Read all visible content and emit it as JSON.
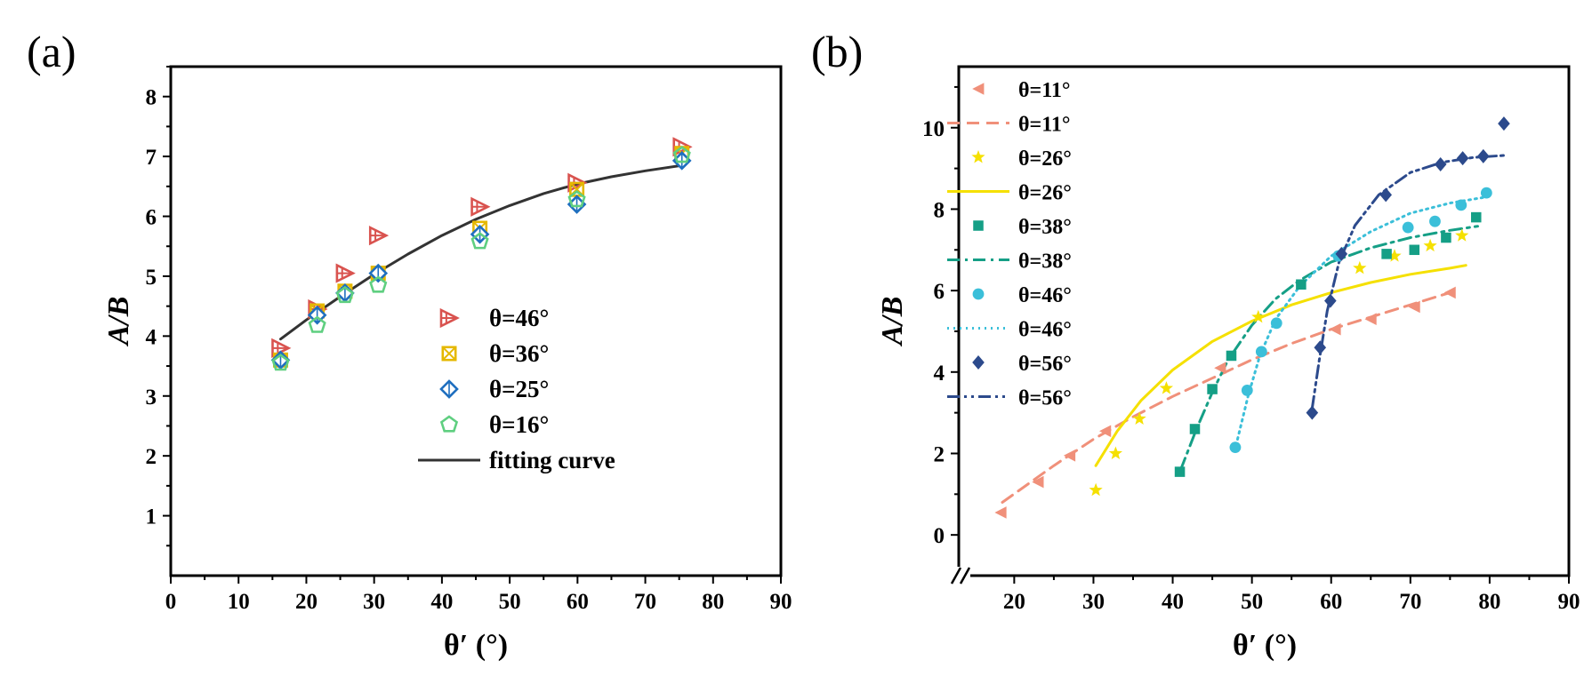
{
  "chart_data": [
    {
      "panel_label": "(a)",
      "type": "scatter",
      "xlabel": "θ′ (°)",
      "ylabel": "A/B",
      "xlim": [
        0,
        90
      ],
      "ylim": [
        0,
        8.5
      ],
      "xticks": [
        0,
        10,
        20,
        30,
        40,
        50,
        60,
        70,
        80,
        90
      ],
      "yticks": [
        1,
        2,
        3,
        4,
        5,
        6,
        7,
        8
      ],
      "grid": false,
      "legend_position": "bottom-right",
      "series": [
        {
          "name": "θ=46°",
          "marker": "triangle-right-plus",
          "color": "#d9534f",
          "x": [
            16.2,
            21.6,
            25.7,
            30.6,
            45.6,
            59.9,
            75.4
          ],
          "y": [
            3.8,
            4.45,
            5.05,
            5.68,
            6.16,
            6.56,
            7.16
          ]
        },
        {
          "name": "θ=36°",
          "marker": "square-x",
          "color": "#e5b800",
          "x": [
            16.2,
            21.6,
            25.7,
            30.6,
            45.6,
            59.9,
            75.4
          ],
          "y": [
            3.6,
            4.42,
            4.75,
            5.05,
            5.8,
            6.45,
            7.05
          ]
        },
        {
          "name": "θ=25°",
          "marker": "diamond-plus",
          "color": "#1f6fbf",
          "x": [
            16.2,
            21.6,
            25.7,
            30.6,
            45.6,
            59.9,
            75.4
          ],
          "y": [
            3.6,
            4.35,
            4.72,
            5.05,
            5.7,
            6.2,
            6.93
          ]
        },
        {
          "name": "θ=16°",
          "marker": "pentagon",
          "color": "#5fcf80",
          "x": [
            16.2,
            21.6,
            25.7,
            30.6,
            45.6,
            59.9,
            75.4
          ],
          "y": [
            3.55,
            4.18,
            4.68,
            4.85,
            5.58,
            6.28,
            7.02
          ]
        },
        {
          "name": "fitting curve",
          "type": "line",
          "style": "solid",
          "color": "#333333",
          "x": [
            16.2,
            20,
            25,
            30,
            35,
            40,
            45,
            50,
            55,
            60,
            65,
            70,
            75.4
          ],
          "y": [
            3.95,
            4.27,
            4.66,
            5.03,
            5.37,
            5.68,
            5.95,
            6.18,
            6.38,
            6.54,
            6.66,
            6.76,
            6.85
          ]
        }
      ]
    },
    {
      "panel_label": "(b)",
      "type": "scatter",
      "xlabel": "θ′ (°)",
      "ylabel": "A/B",
      "xlim": [
        13,
        90
      ],
      "ylim": [
        -1,
        11.5
      ],
      "xticks": [
        20,
        30,
        40,
        50,
        60,
        70,
        80,
        90
      ],
      "yticks": [
        0,
        2,
        4,
        6,
        8,
        10
      ],
      "axis_break": "x-start",
      "grid": false,
      "legend_position": "top-left",
      "series": [
        {
          "name": "θ=11°",
          "marker": "triangle-left",
          "color": "#f0907a",
          "x": [
            18.3,
            23,
            27,
            31.5,
            46,
            60.5,
            65,
            70.5,
            75
          ],
          "y": [
            0.55,
            1.3,
            1.95,
            2.55,
            4.1,
            5.05,
            5.3,
            5.6,
            5.95
          ]
        },
        {
          "name": "θ=11°",
          "type": "line",
          "style": "dashed",
          "color": "#f0907a",
          "x": [
            18.5,
            25,
            30,
            35,
            40,
            45,
            50,
            55,
            60,
            65,
            70,
            75
          ],
          "y": [
            0.8,
            1.7,
            2.35,
            2.9,
            3.4,
            3.85,
            4.3,
            4.7,
            5.05,
            5.35,
            5.65,
            5.95
          ]
        },
        {
          "name": "θ=26°",
          "marker": "star",
          "color": "#f5e000",
          "x": [
            30.3,
            32.8,
            35.8,
            39.2,
            50.8,
            63.6,
            68,
            72.5,
            76.5
          ],
          "y": [
            1.1,
            2.0,
            2.85,
            3.6,
            5.35,
            6.55,
            6.85,
            7.1,
            7.35
          ]
        },
        {
          "name": "θ=26°",
          "type": "line",
          "style": "solid",
          "color": "#f5e000",
          "x": [
            30.3,
            33,
            36,
            40,
            45,
            50,
            55,
            60,
            65,
            70,
            75,
            77
          ],
          "y": [
            1.7,
            2.55,
            3.3,
            4.05,
            4.75,
            5.25,
            5.65,
            5.95,
            6.2,
            6.4,
            6.55,
            6.62
          ]
        },
        {
          "name": "θ=38°",
          "marker": "square",
          "color": "#159f86",
          "x": [
            40.9,
            42.8,
            45,
            47.4,
            56.2,
            67,
            70.5,
            74.5,
            78.3
          ],
          "y": [
            1.55,
            2.6,
            3.58,
            4.4,
            6.15,
            6.9,
            7.0,
            7.3,
            7.8
          ]
        },
        {
          "name": "θ=38°",
          "type": "line",
          "style": "dash-dot",
          "color": "#159f86",
          "x": [
            41,
            43,
            45,
            47,
            50,
            53,
            56,
            60,
            65,
            70,
            75,
            78.5
          ],
          "y": [
            1.6,
            2.6,
            3.5,
            4.3,
            5.15,
            5.8,
            6.25,
            6.7,
            7.05,
            7.3,
            7.48,
            7.58
          ]
        },
        {
          "name": "θ=46°",
          "marker": "circle",
          "color": "#3bbfd9",
          "x": [
            47.9,
            49.4,
            51.2,
            53.1,
            60.9,
            69.7,
            73.1,
            76.4,
            79.6
          ],
          "y": [
            2.15,
            3.55,
            4.5,
            5.2,
            6.85,
            7.55,
            7.7,
            8.1,
            8.4
          ]
        },
        {
          "name": "θ=46°",
          "type": "line",
          "style": "dotted",
          "color": "#3bbfd9",
          "x": [
            48,
            49.5,
            51,
            53,
            56,
            60,
            65,
            70,
            75,
            79.6
          ],
          "y": [
            2.2,
            3.4,
            4.4,
            5.3,
            6.1,
            6.85,
            7.45,
            7.9,
            8.15,
            8.3
          ]
        },
        {
          "name": "θ=56°",
          "marker": "diamond",
          "color": "#2c4a8c",
          "x": [
            57.6,
            58.6,
            59.9,
            61.3,
            66.9,
            73.8,
            76.6,
            79.2,
            81.8
          ],
          "y": [
            3.0,
            4.6,
            5.75,
            6.9,
            8.35,
            9.1,
            9.25,
            9.3,
            10.1
          ]
        },
        {
          "name": "θ=56°",
          "type": "line",
          "style": "dash-dot-dot",
          "color": "#2c4a8c",
          "x": [
            57.6,
            58.5,
            59.5,
            61,
            63,
            66,
            70,
            74,
            78,
            82
          ],
          "y": [
            3.1,
            4.3,
            5.5,
            6.7,
            7.6,
            8.35,
            8.9,
            9.15,
            9.27,
            9.32
          ]
        }
      ]
    }
  ]
}
